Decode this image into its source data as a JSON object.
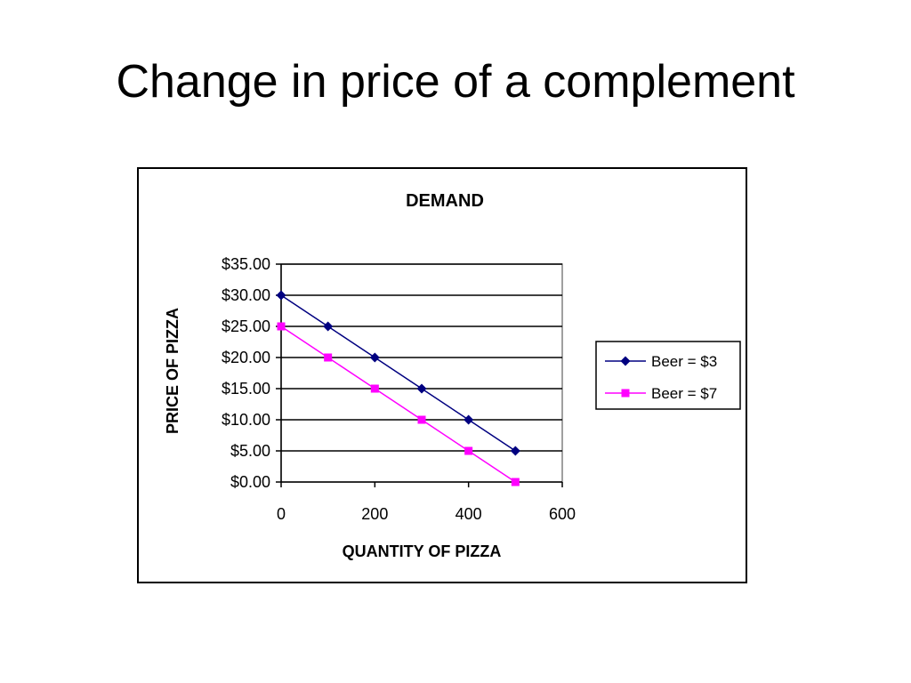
{
  "slide": {
    "title": "Change in price of a complement"
  },
  "chart_data": {
    "type": "line",
    "title": "DEMAND",
    "xlabel": "QUANTITY OF PIZZA",
    "ylabel": "PRICE OF PIZZA",
    "xlim": [
      0,
      600
    ],
    "ylim": [
      0,
      35
    ],
    "xticks": [
      0,
      200,
      400,
      600
    ],
    "yticks": [
      0,
      5,
      10,
      15,
      20,
      25,
      30,
      35
    ],
    "ytick_labels": [
      "$0.00",
      "$5.00",
      "$10.00",
      "$15.00",
      "$20.00",
      "$25.00",
      "$30.00",
      "$35.00"
    ],
    "grid": "horizontal",
    "legend_position": "right",
    "series": [
      {
        "name": "Beer = $3",
        "color": "#000080",
        "marker": "diamond",
        "x": [
          0,
          100,
          200,
          300,
          400,
          500
        ],
        "y": [
          30,
          25,
          20,
          15,
          10,
          5
        ]
      },
      {
        "name": "Beer = $7",
        "color": "#ff00ff",
        "marker": "square",
        "x": [
          0,
          100,
          200,
          300,
          400,
          500
        ],
        "y": [
          25,
          20,
          15,
          10,
          5,
          0
        ]
      }
    ]
  }
}
